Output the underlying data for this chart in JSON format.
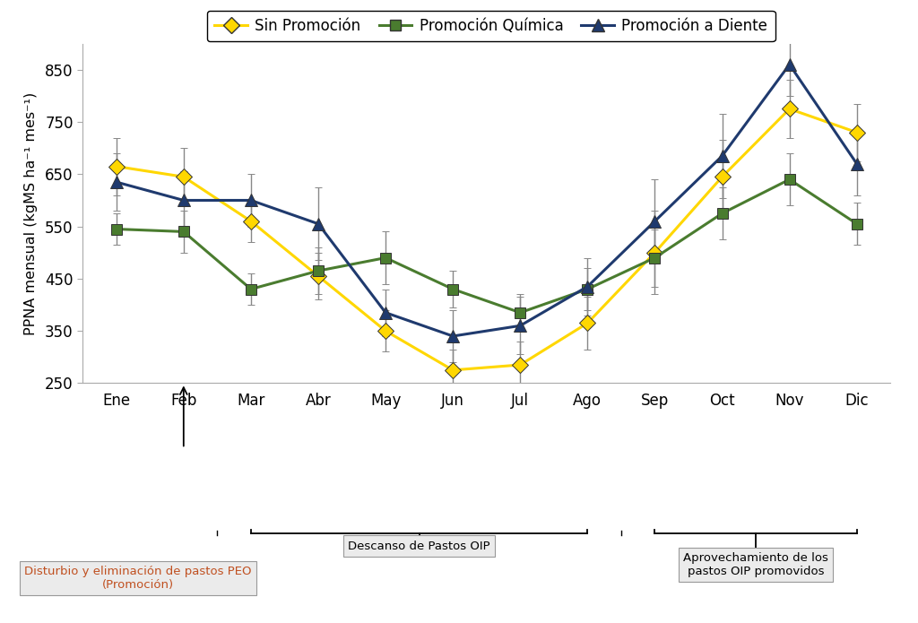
{
  "months": [
    "Ene",
    "Feb",
    "Mar",
    "Abr",
    "May",
    "Jun",
    "Jul",
    "Ago",
    "Sep",
    "Oct",
    "Nov",
    "Dic"
  ],
  "sin_promocion": [
    665,
    645,
    560,
    455,
    350,
    275,
    285,
    365,
    500,
    645,
    775,
    730
  ],
  "sin_promocion_err": [
    55,
    55,
    40,
    45,
    40,
    40,
    45,
    50,
    80,
    70,
    55,
    55
  ],
  "quimica": [
    545,
    540,
    430,
    465,
    490,
    430,
    385,
    430,
    490,
    575,
    640,
    555
  ],
  "quimica_err": [
    30,
    40,
    30,
    45,
    50,
    35,
    35,
    40,
    55,
    50,
    50,
    40
  ],
  "diente": [
    635,
    600,
    600,
    555,
    385,
    340,
    360,
    435,
    560,
    685,
    860,
    670
  ],
  "diente_err": [
    55,
    55,
    50,
    70,
    45,
    50,
    55,
    55,
    80,
    80,
    60,
    60
  ],
  "color_sin": "#FFD700",
  "color_quimica": "#4A7C2F",
  "color_diente": "#1F3A6E",
  "legend_labels": [
    "Sin Promoción",
    "Promoción Química",
    "Promoción a Diente"
  ],
  "ylabel": "PPNA mensual (kgMS ha⁻¹ mes⁻¹)",
  "ylim": [
    250,
    900
  ],
  "yticks": [
    250,
    350,
    450,
    550,
    650,
    750,
    850
  ],
  "annotation1_text": "Disturbio y eliminación de pastos PEO\n(Promoción)",
  "annotation2_text": "Descanso de Pastos OIP",
  "annotation3_text": "Aprovechamiento de los\npastos OIP promovidos",
  "ann1_color": "#C05020",
  "ann2_color": "#C05020",
  "ann3_color": "#000000",
  "background_color": "#FFFFFF"
}
